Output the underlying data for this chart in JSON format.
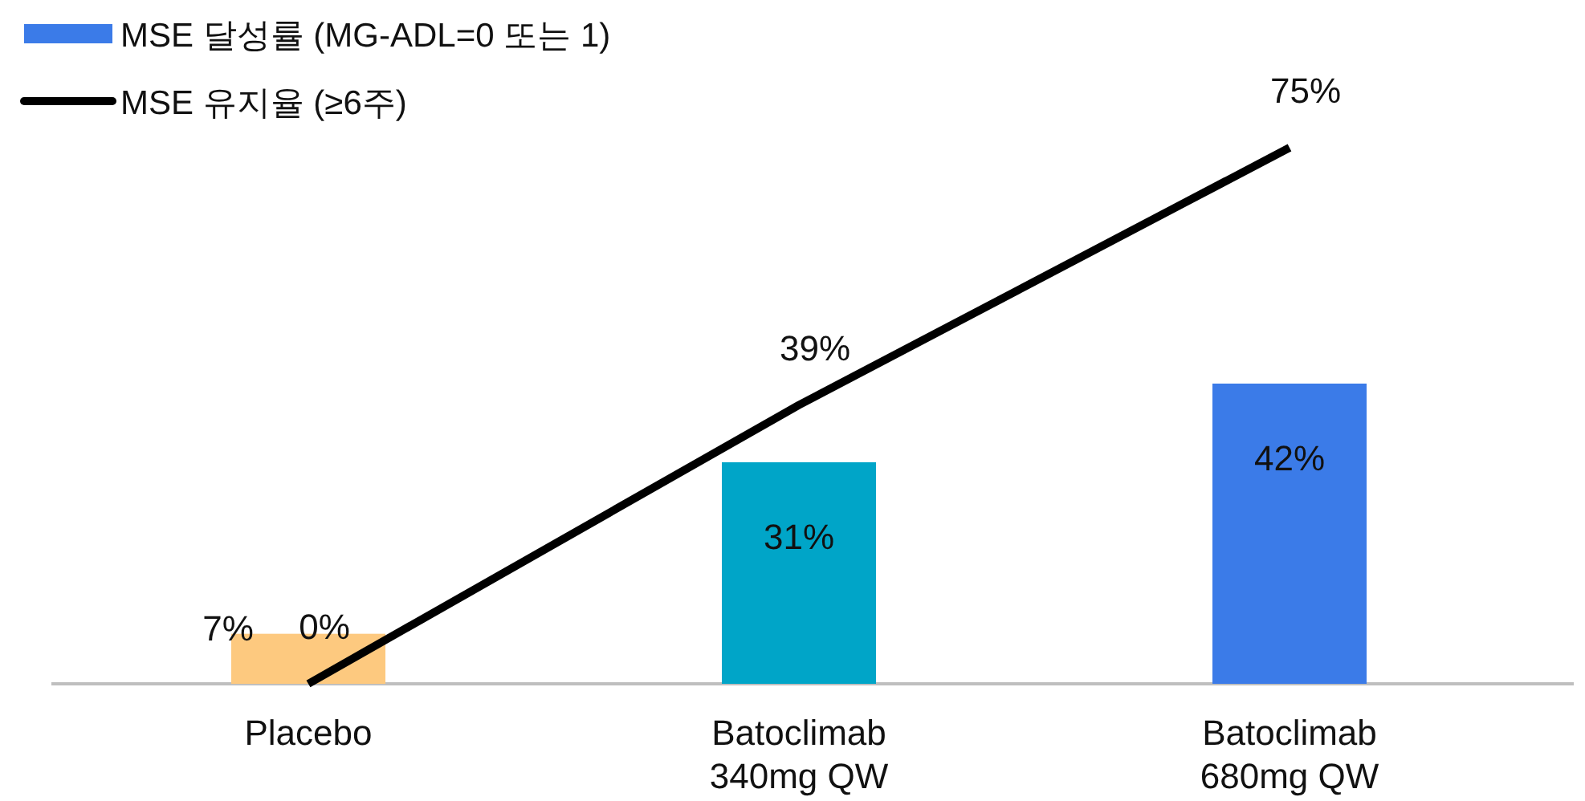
{
  "chart_data": {
    "type": "bar",
    "categories": [
      "Placebo",
      "Batoclimab 340mg QW",
      "Batoclimab 680mg QW"
    ],
    "legend": "top left",
    "series": [
      {
        "name": "MSE 달성률 (MG-ADL=0 또는 1)",
        "color": "#3b7be8",
        "colors": [
          "#fdc97f",
          "#00a5c8",
          "#3b7be8"
        ],
        "values": [
          7,
          31,
          42
        ],
        "value_labels": [
          "7%",
          "31%",
          "42%"
        ]
      },
      {
        "name": "MSE 유지율 (≥6주)",
        "type": "line",
        "color": "#000000",
        "values": [
          0,
          39,
          75
        ],
        "value_labels": [
          "0%",
          "39%",
          "75%"
        ]
      }
    ]
  }
}
